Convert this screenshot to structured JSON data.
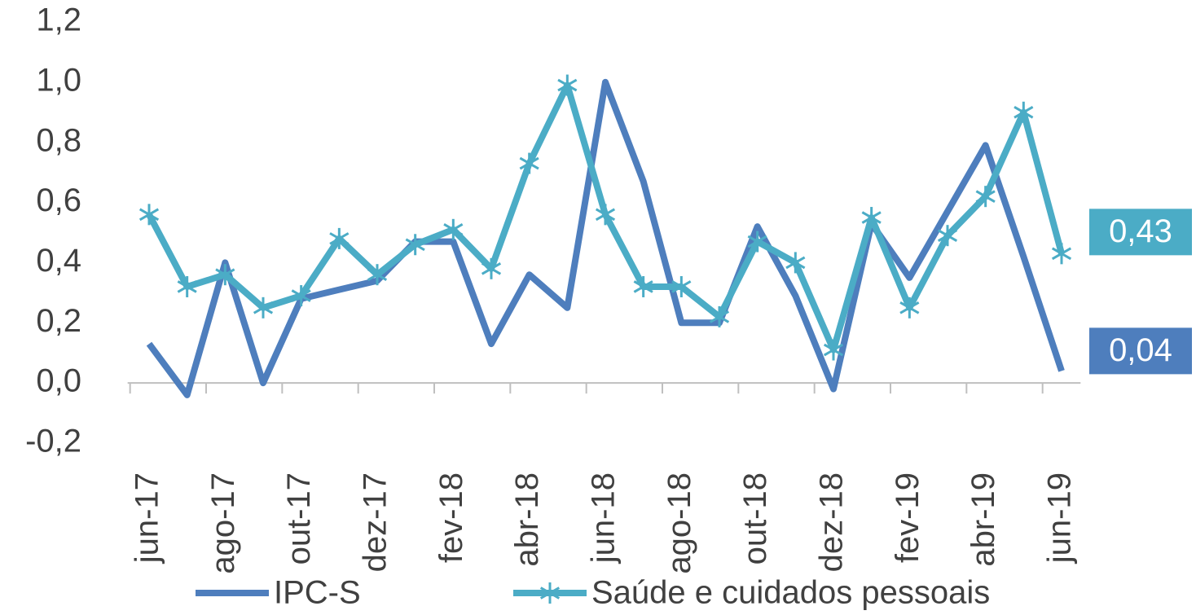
{
  "chart_data": {
    "type": "line",
    "categories": [
      "jun-17",
      null,
      "ago-17",
      null,
      "out-17",
      null,
      "dez-17",
      null,
      "fev-18",
      null,
      "abr-18",
      null,
      "jun-18",
      null,
      "ago-18",
      null,
      "out-18",
      null,
      "dez-18",
      null,
      "fev-19",
      null,
      "abr-19",
      null,
      "jun-19"
    ],
    "series": [
      {
        "name": "IPC-S",
        "color": "#4e7ebd",
        "marker": "none",
        "values": [
          0.13,
          -0.04,
          0.4,
          0.0,
          0.28,
          0.31,
          0.34,
          0.47,
          0.47,
          0.13,
          0.36,
          0.25,
          1.0,
          0.67,
          0.2,
          0.2,
          0.52,
          0.29,
          -0.02,
          0.53,
          0.35,
          0.57,
          0.79,
          0.42,
          0.04
        ],
        "value_labels": [
          null,
          null,
          null,
          null,
          null,
          null,
          null,
          null,
          null,
          null,
          null,
          null,
          null,
          null,
          null,
          null,
          null,
          null,
          null,
          null,
          null,
          null,
          null,
          null,
          "0,04"
        ]
      },
      {
        "name": "Saúde e cuidados pessoais",
        "color": "#4bacc6",
        "marker": "star",
        "values": [
          0.56,
          0.32,
          0.36,
          0.25,
          0.29,
          0.48,
          0.36,
          0.46,
          0.51,
          0.38,
          0.73,
          0.99,
          0.56,
          0.32,
          0.32,
          0.22,
          0.47,
          0.4,
          0.11,
          0.55,
          0.25,
          0.49,
          0.62,
          0.9,
          0.43
        ],
        "value_labels": [
          null,
          null,
          null,
          null,
          null,
          null,
          null,
          null,
          null,
          null,
          null,
          null,
          null,
          null,
          null,
          null,
          null,
          null,
          null,
          null,
          null,
          null,
          null,
          null,
          "0,43"
        ]
      }
    ],
    "ylim": [
      -0.2,
      1.2
    ],
    "yticks": [
      {
        "value": -0.2,
        "label": "-0,2"
      },
      {
        "value": 0,
        "label": "0,0"
      },
      {
        "value": 0.2,
        "label": "0,2"
      },
      {
        "value": 0.4,
        "label": "0,4"
      },
      {
        "value": 0.6,
        "label": "0,6"
      },
      {
        "value": 0.8,
        "label": "0,8"
      },
      {
        "value": 1.0,
        "label": "1,0"
      },
      {
        "value": 1.2,
        "label": "1,2"
      }
    ],
    "grid": false,
    "legend": "bottom"
  }
}
